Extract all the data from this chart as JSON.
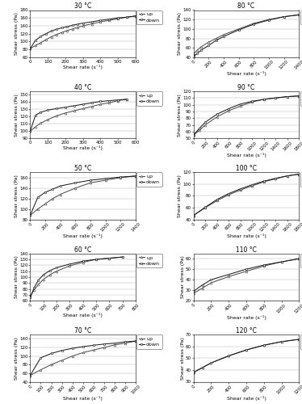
{
  "plots": [
    {
      "title": "30 °C",
      "xlim": [
        0,
        600
      ],
      "ylim": [
        60,
        180
      ],
      "xticks": [
        0,
        100,
        200,
        300,
        400,
        500,
        600
      ],
      "yticks": [
        60,
        80,
        100,
        120,
        140,
        160,
        180
      ],
      "up_x": [
        0,
        30,
        60,
        90,
        120,
        150,
        180,
        210,
        240,
        270,
        300,
        350,
        400,
        450,
        500,
        550,
        600
      ],
      "up_y": [
        82,
        90,
        97,
        105,
        112,
        118,
        123,
        128,
        132,
        136,
        140,
        145,
        150,
        154,
        158,
        162,
        165
      ],
      "down_x": [
        600,
        550,
        500,
        450,
        400,
        350,
        300,
        270,
        240,
        210,
        180,
        150,
        120,
        90,
        60,
        30,
        0
      ],
      "down_y": [
        165,
        162,
        160,
        157,
        154,
        150,
        147,
        144,
        141,
        138,
        135,
        131,
        127,
        120,
        113,
        103,
        82
      ]
    },
    {
      "title": "80 °C",
      "xlim": [
        0,
        1400
      ],
      "ylim": [
        40,
        140
      ],
      "xticks": [
        0,
        200,
        400,
        600,
        800,
        1000,
        1200,
        1400
      ],
      "yticks": [
        40,
        60,
        80,
        100,
        120,
        140
      ],
      "up_x": [
        0,
        50,
        100,
        200,
        300,
        400,
        600,
        800,
        1000,
        1200,
        1400
      ],
      "up_y": [
        48,
        55,
        62,
        72,
        80,
        88,
        100,
        112,
        120,
        126,
        130
      ],
      "down_x": [
        1400,
        1200,
        1000,
        800,
        600,
        400,
        300,
        200,
        100,
        50,
        0
      ],
      "down_y": [
        130,
        126,
        119,
        110,
        98,
        84,
        76,
        65,
        55,
        48,
        42
      ]
    },
    {
      "title": "40 °C",
      "xlim": [
        0,
        600
      ],
      "ylim": [
        90,
        155
      ],
      "xticks": [
        0,
        100,
        200,
        300,
        400,
        500,
        600
      ],
      "yticks": [
        90,
        100,
        110,
        120,
        130,
        140,
        150
      ],
      "up_x": [
        0,
        30,
        60,
        100,
        150,
        200,
        250,
        300,
        350,
        400,
        450,
        500,
        550
      ],
      "up_y": [
        100,
        106,
        111,
        116,
        121,
        125,
        128,
        131,
        134,
        137,
        139,
        142,
        144
      ],
      "down_x": [
        550,
        500,
        450,
        400,
        350,
        300,
        250,
        200,
        150,
        100,
        60,
        30,
        0
      ],
      "down_y": [
        144,
        143,
        142,
        141,
        139,
        137,
        135,
        133,
        131,
        129,
        126,
        122,
        100
      ]
    },
    {
      "title": "90 °C",
      "xlim": [
        0,
        1800
      ],
      "ylim": [
        50,
        120
      ],
      "xticks": [
        0,
        200,
        400,
        600,
        800,
        1000,
        1200,
        1400,
        1600,
        1800
      ],
      "yticks": [
        50,
        60,
        70,
        80,
        90,
        100,
        110,
        120
      ],
      "up_x": [
        0,
        100,
        200,
        400,
        600,
        800,
        1000,
        1200,
        1400,
        1600,
        1800
      ],
      "up_y": [
        55,
        62,
        70,
        82,
        91,
        98,
        104,
        108,
        110,
        112,
        113
      ],
      "down_x": [
        1800,
        1600,
        1400,
        1200,
        1000,
        800,
        600,
        400,
        200,
        100,
        0
      ],
      "down_y": [
        113,
        112,
        110,
        108,
        105,
        101,
        94,
        86,
        74,
        65,
        55
      ]
    },
    {
      "title": "50 °C",
      "xlim": [
        0,
        1400
      ],
      "ylim": [
        80,
        170
      ],
      "xticks": [
        0,
        200,
        400,
        600,
        800,
        1000,
        1200,
        1400
      ],
      "yticks": [
        80,
        100,
        120,
        140,
        160
      ],
      "up_x": [
        0,
        100,
        200,
        300,
        400,
        600,
        800,
        1000,
        1200,
        1400
      ],
      "up_y": [
        88,
        100,
        110,
        120,
        128,
        140,
        150,
        155,
        160,
        163
      ],
      "down_x": [
        1400,
        1200,
        1000,
        800,
        600,
        400,
        300,
        200,
        100,
        0
      ],
      "down_y": [
        163,
        161,
        158,
        155,
        150,
        144,
        138,
        132,
        122,
        88
      ]
    },
    {
      "title": "100 °C",
      "xlim": [
        0,
        1800
      ],
      "ylim": [
        40,
        120
      ],
      "xticks": [
        0,
        200,
        400,
        600,
        800,
        1000,
        1200,
        1400,
        1600,
        1800
      ],
      "yticks": [
        40,
        60,
        80,
        100,
        120
      ],
      "up_x": [
        0,
        200,
        400,
        600,
        800,
        1000,
        1200,
        1400,
        1600,
        1800
      ],
      "up_y": [
        47,
        60,
        72,
        82,
        90,
        97,
        104,
        109,
        114,
        117
      ],
      "down_x": [
        1800,
        1600,
        1400,
        1200,
        1000,
        800,
        600,
        400,
        200,
        0
      ],
      "down_y": [
        117,
        114,
        110,
        105,
        99,
        92,
        84,
        74,
        61,
        47
      ]
    },
    {
      "title": "60 °C",
      "xlim": [
        0,
        800
      ],
      "ylim": [
        60,
        140
      ],
      "xticks": [
        0,
        100,
        200,
        300,
        400,
        500,
        600,
        700,
        800
      ],
      "yticks": [
        60,
        70,
        80,
        90,
        100,
        110,
        120,
        130,
        140
      ],
      "up_x": [
        0,
        30,
        60,
        100,
        150,
        200,
        300,
        400,
        500,
        600,
        700
      ],
      "up_y": [
        68,
        78,
        87,
        96,
        104,
        110,
        119,
        125,
        130,
        132,
        134
      ],
      "down_x": [
        700,
        600,
        500,
        400,
        300,
        200,
        150,
        100,
        60,
        30,
        0
      ],
      "down_y": [
        134,
        132,
        130,
        127,
        122,
        116,
        111,
        104,
        94,
        82,
        65
      ]
    },
    {
      "title": "110 °C",
      "xlim": [
        0,
        1200
      ],
      "ylim": [
        20,
        65
      ],
      "xticks": [
        0,
        200,
        400,
        600,
        800,
        1000,
        1200
      ],
      "yticks": [
        20,
        30,
        40,
        50,
        60
      ],
      "up_x": [
        0,
        100,
        200,
        400,
        600,
        800,
        1000,
        1200
      ],
      "up_y": [
        27,
        32,
        37,
        43,
        48,
        53,
        57,
        60
      ],
      "down_x": [
        1200,
        1000,
        800,
        600,
        400,
        200,
        100,
        0
      ],
      "down_y": [
        60,
        57,
        54,
        50,
        45,
        40,
        35,
        29
      ]
    },
    {
      "title": "70 °C",
      "xlim": [
        0,
        1000
      ],
      "ylim": [
        40,
        150
      ],
      "xticks": [
        0,
        100,
        200,
        300,
        400,
        500,
        600,
        700,
        800,
        900,
        1000
      ],
      "yticks": [
        40,
        60,
        80,
        100,
        120,
        140
      ],
      "up_x": [
        0,
        100,
        200,
        300,
        400,
        500,
        600,
        700,
        800,
        900,
        1000
      ],
      "up_y": [
        55,
        68,
        80,
        90,
        100,
        108,
        114,
        120,
        126,
        130,
        135
      ],
      "down_x": [
        1000,
        900,
        800,
        700,
        600,
        500,
        400,
        300,
        200,
        100,
        0
      ],
      "down_y": [
        135,
        133,
        130,
        128,
        125,
        122,
        118,
        113,
        106,
        96,
        55
      ]
    },
    {
      "title": "120 °C",
      "xlim": [
        0,
        1200
      ],
      "ylim": [
        30,
        70
      ],
      "xticks": [
        0,
        200,
        400,
        600,
        800,
        1000,
        1200
      ],
      "yticks": [
        30,
        40,
        50,
        60,
        70
      ],
      "up_x": [
        0,
        100,
        200,
        400,
        600,
        800,
        1000,
        1200
      ],
      "up_y": [
        38,
        42,
        46,
        52,
        57,
        61,
        64,
        66
      ],
      "down_x": [
        1200,
        1000,
        800,
        600,
        400,
        200,
        100,
        0
      ],
      "down_y": [
        66,
        64,
        61,
        57,
        52,
        46,
        42,
        38
      ]
    }
  ],
  "xlabel": "Shear rate (s⁻¹)",
  "ylabel": "Shear stress (Pa)",
  "up_label": "up",
  "down_label": "down",
  "up_color": "#444444",
  "down_color": "#111111",
  "marker_up": "^",
  "marker_down": "s",
  "linewidth": 0.7,
  "markersize": 2.0,
  "font_size_title": 5.5,
  "font_size_tick": 4.0,
  "font_size_label": 4.5,
  "font_size_legend": 4.5
}
